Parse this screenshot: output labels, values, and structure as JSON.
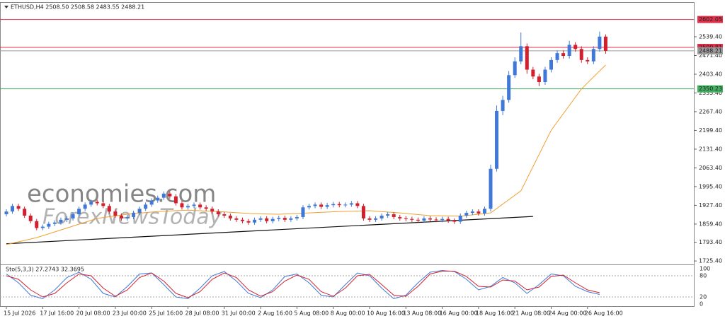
{
  "chart_data": {
    "type": "candlestick",
    "title": "ETHUSD,H4  2508.50 2508.58 2483.55 2488.21",
    "categories": [
      "15 Jul 2026",
      null,
      null,
      null,
      null,
      null,
      "17 Jul 16:00",
      null,
      null,
      null,
      null,
      null,
      "20 Jul 08:00",
      null,
      null,
      null,
      null,
      null,
      "23 Jul 00:00",
      null,
      null,
      null,
      null,
      null,
      "25 Jul 16:00",
      null,
      null,
      null,
      null,
      null,
      "28 Jul 08:00",
      null,
      null,
      null,
      null,
      null,
      "31 Jul 00:00",
      null,
      null,
      null,
      null,
      null,
      "2 Aug 16:00",
      null,
      null,
      null,
      null,
      null,
      "5 Aug 08:00",
      null,
      null,
      null,
      null,
      null,
      "8 Aug 00:00",
      null,
      null,
      null,
      null,
      null,
      "10 Aug 16:00",
      null,
      null,
      null,
      null,
      null,
      "13 Aug 08:00",
      null,
      null,
      null,
      null,
      null,
      "16 Aug 00:00",
      null,
      null,
      null,
      null,
      null,
      "18 Aug 16:00",
      null,
      null,
      null,
      null,
      null,
      "21 Aug 08:00",
      null,
      null,
      null,
      null,
      null,
      "24 Aug 00:00",
      null,
      null,
      null,
      null,
      null,
      "26 Aug 16:00",
      null,
      null,
      null
    ],
    "open": [
      1895,
      1905,
      1925,
      1915,
      1890,
      1870,
      1845,
      1850,
      1860,
      1865,
      1875,
      1880,
      1895,
      1915,
      1930,
      1940,
      1935,
      1925,
      1905,
      1890,
      1880,
      1885,
      1900,
      1915,
      1930,
      1945,
      1955,
      1970,
      1960,
      1935,
      1920,
      1925,
      1930,
      1920,
      1915,
      1905,
      1895,
      1890,
      1880,
      1875,
      1870,
      1865,
      1875,
      1880,
      1870,
      1878,
      1882,
      1875,
      1880,
      1885,
      1920,
      1925,
      1930,
      1922,
      1928,
      1932,
      1928,
      1930,
      1935,
      1925,
      1880,
      1875,
      1880,
      1890,
      1895,
      1885,
      1880,
      1878,
      1875,
      1872,
      1880,
      1876,
      1874,
      1878,
      1872,
      1868,
      1890,
      1900,
      1905,
      1898,
      1915,
      2060,
      2270,
      2310,
      2400,
      2450,
      2505,
      2420,
      2395,
      2375,
      2420,
      2455,
      2480,
      2470,
      2510,
      2495,
      2455,
      2450,
      2495,
      2540
    ],
    "high": [
      1913,
      1933,
      1933,
      1923,
      1898,
      1878,
      1858,
      1868,
      1873,
      1883,
      1888,
      1903,
      1923,
      1938,
      1948,
      1948,
      1943,
      1933,
      1913,
      1898,
      1893,
      1908,
      1923,
      1938,
      1953,
      1963,
      1978,
      1978,
      1968,
      1943,
      1933,
      1938,
      1938,
      1928,
      1923,
      1913,
      1903,
      1898,
      1888,
      1883,
      1878,
      1883,
      1888,
      1888,
      1886,
      1890,
      1890,
      1888,
      1893,
      1928,
      1933,
      1938,
      1938,
      1936,
      1940,
      1940,
      1938,
      1943,
      1943,
      1933,
      1888,
      1888,
      1898,
      1903,
      1903,
      1893,
      1888,
      1886,
      1883,
      1888,
      1888,
      1884,
      1886,
      1886,
      1880,
      1898,
      1908,
      1913,
      1913,
      1923,
      2075,
      2290,
      2325,
      2415,
      2465,
      2555,
      2515,
      2430,
      2405,
      2430,
      2465,
      2490,
      2490,
      2525,
      2520,
      2505,
      2465,
      2505,
      2558,
      2548
    ],
    "low": [
      1887,
      1897,
      1907,
      1882,
      1862,
      1837,
      1837,
      1842,
      1852,
      1857,
      1867,
      1872,
      1887,
      1907,
      1922,
      1927,
      1917,
      1897,
      1882,
      1872,
      1872,
      1877,
      1892,
      1907,
      1922,
      1937,
      1947,
      1952,
      1927,
      1912,
      1912,
      1917,
      1912,
      1907,
      1897,
      1887,
      1882,
      1872,
      1867,
      1862,
      1857,
      1857,
      1867,
      1862,
      1862,
      1870,
      1867,
      1867,
      1872,
      1877,
      1912,
      1917,
      1914,
      1914,
      1920,
      1920,
      1920,
      1922,
      1917,
      1872,
      1867,
      1867,
      1872,
      1882,
      1877,
      1872,
      1870,
      1867,
      1864,
      1864,
      1868,
      1866,
      1866,
      1864,
      1860,
      1860,
      1882,
      1892,
      1890,
      1890,
      1905,
      2050,
      2255,
      2300,
      2390,
      2440,
      2405,
      2385,
      2360,
      2365,
      2410,
      2445,
      2460,
      2460,
      2485,
      2445,
      2440,
      2440,
      2485,
      2478
    ],
    "close": [
      1905,
      1925,
      1915,
      1890,
      1870,
      1845,
      1850,
      1860,
      1865,
      1875,
      1880,
      1895,
      1915,
      1930,
      1940,
      1935,
      1925,
      1905,
      1890,
      1880,
      1885,
      1900,
      1915,
      1930,
      1945,
      1955,
      1970,
      1960,
      1935,
      1920,
      1925,
      1930,
      1920,
      1915,
      1905,
      1895,
      1890,
      1880,
      1875,
      1870,
      1865,
      1875,
      1880,
      1870,
      1878,
      1882,
      1875,
      1880,
      1885,
      1920,
      1925,
      1930,
      1922,
      1928,
      1932,
      1928,
      1930,
      1935,
      1925,
      1880,
      1875,
      1880,
      1890,
      1895,
      1885,
      1880,
      1878,
      1875,
      1872,
      1880,
      1876,
      1874,
      1878,
      1872,
      1868,
      1890,
      1900,
      1905,
      1898,
      1915,
      2060,
      2270,
      2310,
      2400,
      2450,
      2505,
      2420,
      2395,
      2375,
      2420,
      2455,
      2480,
      2470,
      2510,
      2495,
      2455,
      2450,
      2495,
      2540,
      2488
    ],
    "up_color": "#3f78d8",
    "down_color": "#d3202e",
    "ylim": [
      1718,
      2660
    ],
    "yticks": [
      {
        "value": 2539.4,
        "label": "2539.40"
      },
      {
        "value": 2471.4,
        "label": "2471.40"
      },
      {
        "value": 2403.4,
        "label": "2403.40"
      },
      {
        "value": 2335.4,
        "label": "2335.40"
      },
      {
        "value": 2267.4,
        "label": "2267.40"
      },
      {
        "value": 2199.4,
        "label": "2199.40"
      },
      {
        "value": 2131.4,
        "label": "2131.40"
      },
      {
        "value": 2063.4,
        "label": "2063.40"
      },
      {
        "value": 1995.4,
        "label": "1995.40"
      },
      {
        "value": 1927.4,
        "label": "1927.40"
      },
      {
        "value": 1859.4,
        "label": "1859.40"
      },
      {
        "value": 1793.4,
        "label": "1793.40"
      },
      {
        "value": 1725.4,
        "label": "1725.40"
      }
    ],
    "ma": {
      "color": "#f0a030",
      "x": [
        0,
        5,
        10,
        15,
        20,
        25,
        30,
        35,
        40,
        45,
        50,
        55,
        60,
        65,
        70,
        75,
        80,
        85,
        90,
        95,
        99
      ],
      "values": [
        1785,
        1810,
        1845,
        1880,
        1895,
        1905,
        1910,
        1905,
        1898,
        1895,
        1900,
        1905,
        1908,
        1900,
        1890,
        1888,
        1900,
        1980,
        2200,
        2350,
        2437
      ]
    },
    "trendline": {
      "color": "#111111",
      "x": [
        0,
        87
      ],
      "values": [
        1788,
        1887
      ]
    },
    "levels": [
      {
        "value": 2602.05,
        "color": "#e0304a"
      },
      {
        "value": 2500.81,
        "color": "#e0304a"
      },
      {
        "value": 2488.21,
        "color": "#9a9a9a"
      },
      {
        "value": 2350.23,
        "color": "#40b060"
      }
    ],
    "watermark": [
      "economies.com",
      "ForexNewsToday"
    ],
    "stochastic": {
      "title": "Sto(5,3,3) 27.2743 32.3695",
      "ylim": [
        0,
        100
      ],
      "yticks": [
        100,
        80,
        20,
        0
      ],
      "x": [
        0,
        2,
        4,
        6,
        8,
        10,
        12,
        14,
        16,
        18,
        20,
        22,
        24,
        26,
        28,
        30,
        32,
        34,
        36,
        38,
        40,
        42,
        44,
        46,
        48,
        50,
        52,
        54,
        56,
        58,
        60,
        62,
        64,
        66,
        68,
        70,
        72,
        74,
        76,
        78,
        80,
        82,
        84,
        86,
        88,
        90,
        92,
        94,
        96,
        98
      ],
      "series": [
        {
          "color": "#3f78d8",
          "values": [
            85,
            60,
            25,
            15,
            40,
            75,
            90,
            70,
            30,
            20,
            50,
            85,
            88,
            55,
            20,
            15,
            45,
            80,
            92,
            65,
            30,
            18,
            40,
            78,
            85,
            60,
            25,
            20,
            55,
            88,
            80,
            45,
            15,
            25,
            60,
            90,
            95,
            92,
            70,
            40,
            50,
            75,
            60,
            30,
            55,
            85,
            80,
            50,
            35,
            27
          ]
        },
        {
          "color": "#d3202e",
          "values": [
            80,
            70,
            40,
            20,
            30,
            60,
            85,
            80,
            45,
            22,
            40,
            75,
            88,
            65,
            30,
            18,
            35,
            70,
            88,
            75,
            40,
            22,
            35,
            65,
            82,
            70,
            35,
            22,
            45,
            80,
            84,
            55,
            25,
            22,
            50,
            85,
            93,
            93,
            78,
            50,
            48,
            68,
            65,
            40,
            48,
            78,
            82,
            60,
            40,
            32
          ]
        }
      ]
    }
  }
}
